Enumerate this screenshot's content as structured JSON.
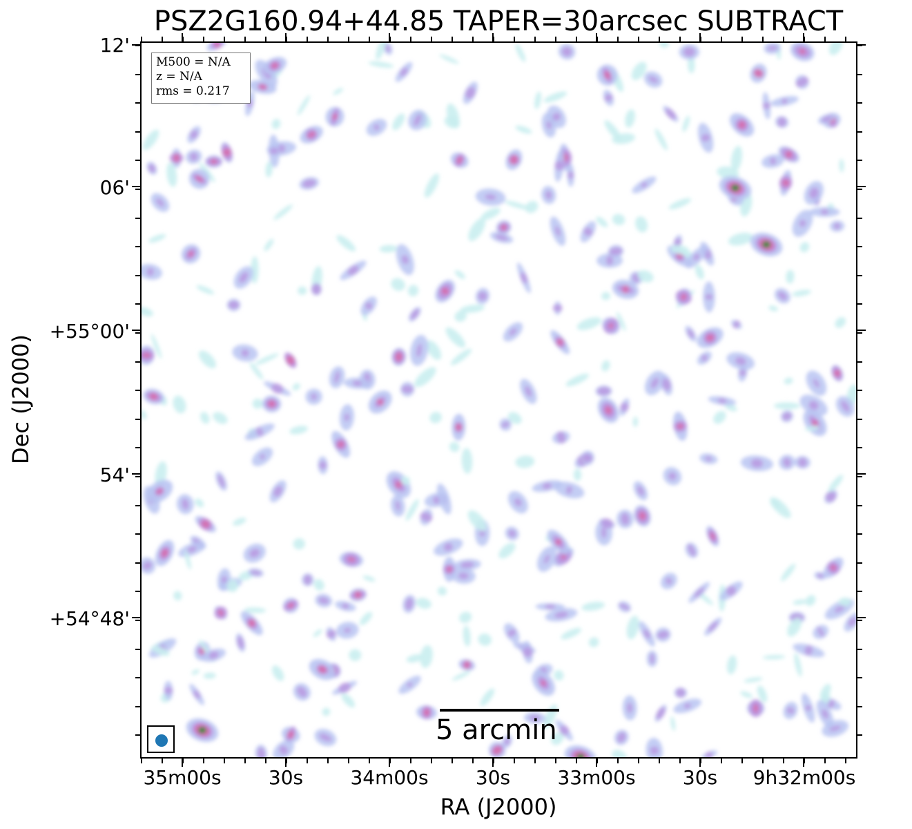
{
  "title": "PSZ2G160.94+44.85 TAPER=30arcsec SUBTRACT",
  "info": {
    "mass": "M500 = N/A",
    "redshift": "z = N/A",
    "rms": "rms = 0.217"
  },
  "scalebar": {
    "label": "5 arcmin"
  },
  "axes": {
    "x_title": "RA (J2000)",
    "y_title": "Dec (J2000)",
    "x_ticks": [
      "35m00s",
      "30s",
      "34m00s",
      "30s",
      "33m00s",
      "30s",
      "9h32m00s"
    ],
    "y_ticks": [
      "12'",
      "06'",
      "+55°00'",
      "54'",
      "+54°48'"
    ]
  },
  "colormap": {
    "faint": "#c9eef0",
    "low": "#b9c4f2",
    "mid": "#b995e0",
    "high": "#d86aa8",
    "peak": "#2f8a3a"
  },
  "beam": {
    "color": "#1f77b4"
  }
}
